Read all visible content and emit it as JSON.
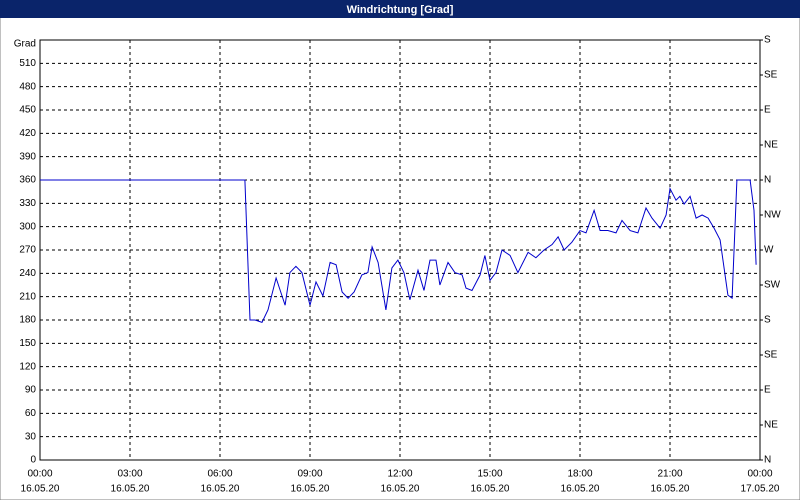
{
  "chart_data": {
    "type": "line",
    "title": "Windrichtung [Grad]",
    "y_label": "Grad",
    "xlim": [
      0,
      24
    ],
    "xticks": [
      {
        "value": 0,
        "label": "00:00",
        "sublabel": "16.05.20"
      },
      {
        "value": 3,
        "label": "03:00",
        "sublabel": "16.05.20"
      },
      {
        "value": 6,
        "label": "06:00",
        "sublabel": "16.05.20"
      },
      {
        "value": 9,
        "label": "09:00",
        "sublabel": "16.05.20"
      },
      {
        "value": 12,
        "label": "12:00",
        "sublabel": "16.05.20"
      },
      {
        "value": 15,
        "label": "15:00",
        "sublabel": "16.05.20"
      },
      {
        "value": 18,
        "label": "18:00",
        "sublabel": "16.05.20"
      },
      {
        "value": 21,
        "label": "21:00",
        "sublabel": "16.05.20"
      },
      {
        "value": 24,
        "label": "00:00",
        "sublabel": "17.05.20"
      }
    ],
    "ylim": [
      0,
      540
    ],
    "yticks": [
      0,
      30,
      60,
      90,
      120,
      150,
      180,
      210,
      240,
      270,
      300,
      330,
      360,
      390,
      420,
      450,
      480,
      510
    ],
    "y2lim": [
      0,
      540
    ],
    "y2ticks": [
      {
        "value": 0,
        "label": "N"
      },
      {
        "value": 45,
        "label": "NE"
      },
      {
        "value": 90,
        "label": "E"
      },
      {
        "value": 135,
        "label": "SE"
      },
      {
        "value": 180,
        "label": "S"
      },
      {
        "value": 225,
        "label": "SW"
      },
      {
        "value": 270,
        "label": "W"
      },
      {
        "value": 315,
        "label": "NW"
      },
      {
        "value": 360,
        "label": "N"
      },
      {
        "value": 405,
        "label": "NE"
      },
      {
        "value": 450,
        "label": "E"
      },
      {
        "value": 495,
        "label": "SE"
      },
      {
        "value": 540,
        "label": "S"
      }
    ],
    "grid": true,
    "x": [
      0,
      6.83,
      7,
      7.17,
      7.4,
      7.6,
      7.87,
      8.17,
      8.33,
      8.53,
      8.73,
      9,
      9.2,
      9.43,
      9.67,
      9.87,
      10.07,
      10.27,
      10.47,
      10.73,
      10.93,
      11.07,
      11.27,
      11.53,
      11.73,
      11.93,
      12.13,
      12.33,
      12.6,
      12.8,
      13,
      13.2,
      13.33,
      13.6,
      13.83,
      14.07,
      14.2,
      14.4,
      14.67,
      14.83,
      15,
      15.2,
      15.4,
      15.67,
      15.93,
      16.27,
      16.53,
      16.8,
      17.07,
      17.27,
      17.47,
      17.73,
      18,
      18.2,
      18.47,
      18.67,
      18.93,
      19.2,
      19.4,
      19.67,
      19.93,
      20.2,
      20.4,
      20.67,
      20.87,
      21,
      21.2,
      21.33,
      21.47,
      21.67,
      21.87,
      22.07,
      22.27,
      22.47,
      22.67,
      22.93,
      23.07,
      23.23,
      23.67,
      23.8,
      23.87
    ],
    "series": [
      {
        "name": "Windrichtung",
        "color": "#0000cc",
        "values": [
          360,
          360,
          180,
          180,
          177,
          193,
          234,
          199,
          241,
          249,
          241,
          199,
          229,
          211,
          254,
          251,
          216,
          208,
          216,
          238,
          241,
          274,
          254,
          193,
          247,
          257,
          241,
          206,
          244,
          218,
          257,
          257,
          225,
          254,
          241,
          238,
          221,
          218,
          238,
          263,
          231,
          241,
          270,
          263,
          241,
          267,
          260,
          270,
          277,
          287,
          270,
          280,
          295,
          292,
          321,
          295,
          295,
          292,
          308,
          295,
          292,
          324,
          311,
          298,
          315,
          349,
          334,
          339,
          329,
          339,
          311,
          315,
          311,
          298,
          283,
          212,
          208,
          360,
          360,
          321,
          251
        ]
      }
    ]
  }
}
